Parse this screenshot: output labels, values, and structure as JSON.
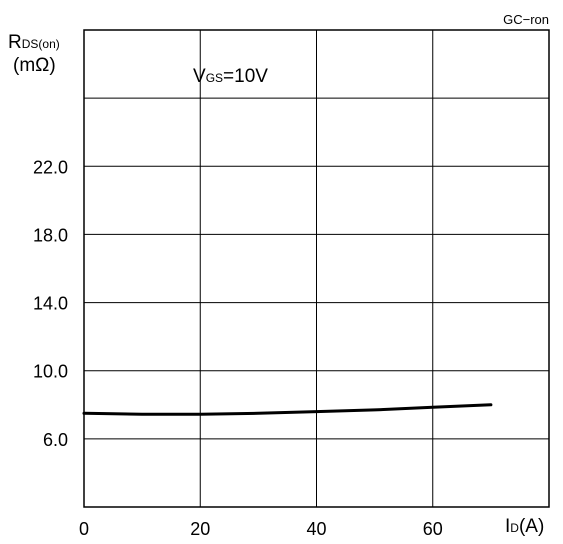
{
  "chart_data": {
    "type": "line",
    "figure_code": "GC−ron",
    "annotation": {
      "main": "V",
      "sub": "GS",
      "rest": "=10V"
    },
    "ylabel": {
      "main": "R",
      "sub": "DS(on)",
      "unit": "(mΩ)"
    },
    "xlabel": {
      "main": "I",
      "sub": "D",
      "rest": "(A)"
    },
    "xlim": [
      0,
      80
    ],
    "ylim": [
      2.0,
      30.0
    ],
    "x_gridlines": [
      20,
      40,
      60
    ],
    "y_gridlines": [
      6.0,
      10.0,
      14.0,
      18.0,
      22.0,
      26.0
    ],
    "x_ticks": [
      {
        "value": 0,
        "label": "0"
      },
      {
        "value": 20,
        "label": "20"
      },
      {
        "value": 40,
        "label": "40"
      },
      {
        "value": 60,
        "label": "60"
      }
    ],
    "y_ticks": [
      {
        "value": 6.0,
        "label": "6.0"
      },
      {
        "value": 10.0,
        "label": "10.0"
      },
      {
        "value": 14.0,
        "label": "14.0"
      },
      {
        "value": 18.0,
        "label": "18.0"
      },
      {
        "value": 22.0,
        "label": "22.0"
      }
    ],
    "grid": true,
    "series": [
      {
        "color": "#000000",
        "x": [
          0,
          10,
          20,
          30,
          40,
          50,
          60,
          70
        ],
        "y": [
          7.5,
          7.45,
          7.45,
          7.5,
          7.6,
          7.7,
          7.85,
          8.0
        ]
      }
    ]
  }
}
